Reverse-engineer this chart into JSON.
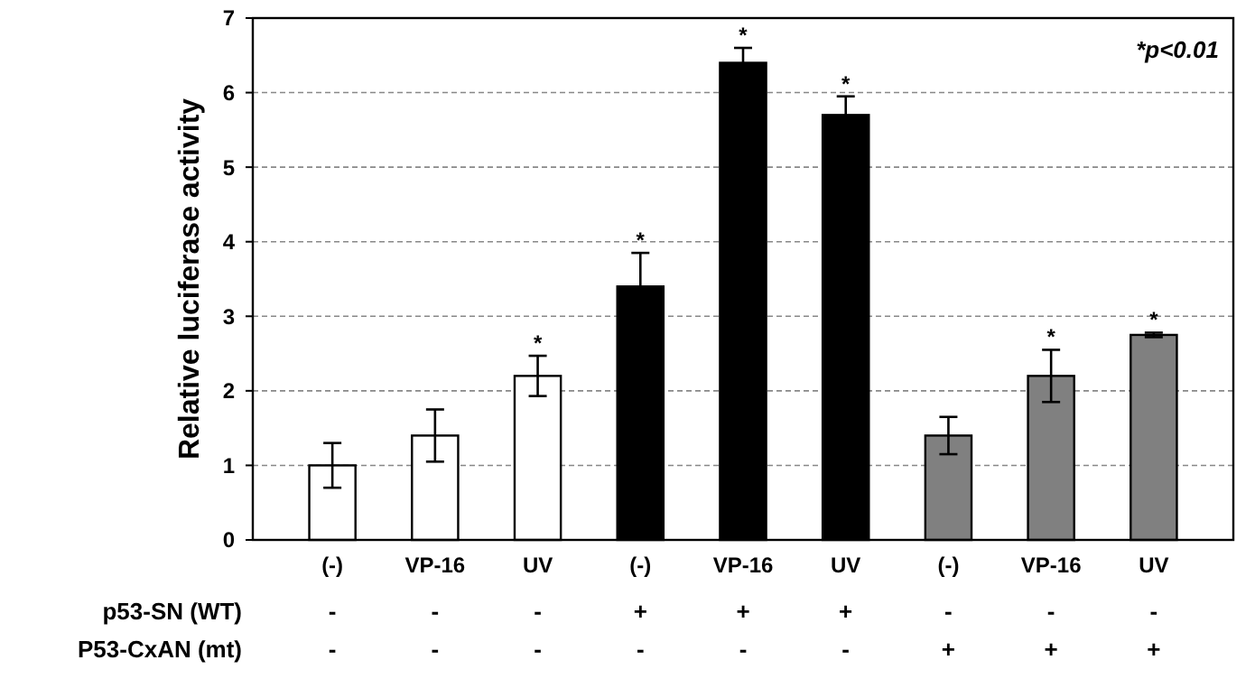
{
  "chart_data": {
    "type": "bar",
    "ylabel": "Relative luciferase activity",
    "categories": [
      "(-)",
      "VP-16",
      "UV",
      "(-)",
      "VP-16",
      "UV",
      "(-)",
      "VP-16",
      "UV"
    ],
    "values": [
      1.0,
      1.4,
      2.2,
      3.4,
      6.4,
      5.7,
      1.4,
      2.2,
      2.75
    ],
    "colors": [
      "#ffffff",
      "#ffffff",
      "#ffffff",
      "#000000",
      "#000000",
      "#000000",
      "#808080",
      "#808080",
      "#808080"
    ],
    "errors": [
      0.3,
      0.35,
      0.27,
      0.45,
      0.2,
      0.25,
      0.25,
      0.35,
      0.03
    ],
    "value_labels": [
      null,
      null,
      "*",
      "*",
      "*",
      "*",
      null,
      "*",
      "*"
    ],
    "ylim": [
      0,
      7
    ],
    "yticks": [
      0,
      1,
      2,
      3,
      4,
      5,
      6,
      7
    ],
    "grid": "y",
    "annotations": [
      "*p<0.01",
      "p53-SN (WT)",
      "-",
      "-",
      "-",
      "+",
      "+",
      "+",
      "-",
      "-",
      "-",
      "P53-CxAN (mt)",
      "-",
      "-",
      "-",
      "-",
      "-",
      "-",
      "+",
      "+",
      "+"
    ]
  }
}
